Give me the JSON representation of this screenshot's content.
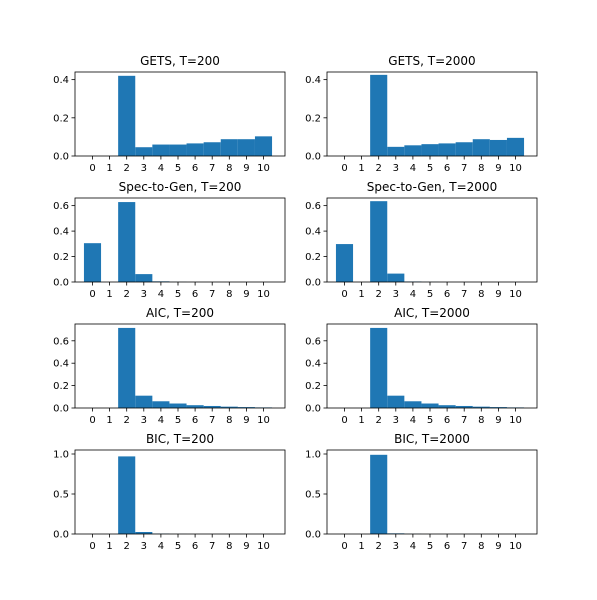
{
  "bar_color": "#1f77b4",
  "chart_data": [
    {
      "type": "bar",
      "title": "GETS, T=200",
      "categories": [
        "0",
        "1",
        "2",
        "3",
        "4",
        "5",
        "6",
        "7",
        "8",
        "9",
        "10"
      ],
      "values": [
        0,
        0,
        0.42,
        0.046,
        0.06,
        0.06,
        0.066,
        0.072,
        0.088,
        0.088,
        0.103
      ],
      "ylim": [
        0,
        0.44
      ],
      "yticks": [
        0.0,
        0.2,
        0.4
      ],
      "ytick_labels": [
        "0.0",
        "0.2",
        "0.4"
      ],
      "grid": false
    },
    {
      "type": "bar",
      "title": "GETS, T=2000",
      "categories": [
        "0",
        "1",
        "2",
        "3",
        "4",
        "5",
        "6",
        "7",
        "8",
        "9",
        "10"
      ],
      "values": [
        0,
        0,
        0.425,
        0.048,
        0.056,
        0.062,
        0.066,
        0.072,
        0.088,
        0.084,
        0.095
      ],
      "ylim": [
        0,
        0.44
      ],
      "yticks": [
        0.0,
        0.2,
        0.4
      ],
      "ytick_labels": [
        "0.0",
        "0.2",
        "0.4"
      ],
      "grid": false
    },
    {
      "type": "bar",
      "title": "Spec-to-Gen, T=200",
      "categories": [
        "0",
        "1",
        "2",
        "3",
        "4",
        "5",
        "6",
        "7",
        "8",
        "9",
        "10"
      ],
      "values": [
        0.305,
        0,
        0.628,
        0.062,
        0.005,
        0.001,
        0,
        0,
        0,
        0,
        0
      ],
      "ylim": [
        0,
        0.66
      ],
      "yticks": [
        0.0,
        0.2,
        0.4,
        0.6
      ],
      "ytick_labels": [
        "0.0",
        "0.2",
        "0.4",
        "0.6"
      ],
      "grid": false
    },
    {
      "type": "bar",
      "title": "Spec-to-Gen, T=2000",
      "categories": [
        "0",
        "1",
        "2",
        "3",
        "4",
        "5",
        "6",
        "7",
        "8",
        "9",
        "10"
      ],
      "values": [
        0.298,
        0,
        0.635,
        0.066,
        0.004,
        0.001,
        0,
        0,
        0,
        0,
        0
      ],
      "ylim": [
        0,
        0.66
      ],
      "yticks": [
        0.0,
        0.2,
        0.4,
        0.6
      ],
      "ytick_labels": [
        "0.0",
        "0.2",
        "0.4",
        "0.6"
      ],
      "grid": false
    },
    {
      "type": "bar",
      "title": "AIC, T=200",
      "categories": [
        "0",
        "1",
        "2",
        "3",
        "4",
        "5",
        "6",
        "7",
        "8",
        "9",
        "10"
      ],
      "values": [
        0,
        0,
        0.715,
        0.11,
        0.06,
        0.04,
        0.025,
        0.018,
        0.012,
        0.008,
        0.005
      ],
      "ylim": [
        0,
        0.75
      ],
      "yticks": [
        0.0,
        0.2,
        0.4,
        0.6
      ],
      "ytick_labels": [
        "0.0",
        "0.2",
        "0.4",
        "0.6"
      ],
      "grid": false
    },
    {
      "type": "bar",
      "title": "AIC, T=2000",
      "categories": [
        "0",
        "1",
        "2",
        "3",
        "4",
        "5",
        "6",
        "7",
        "8",
        "9",
        "10"
      ],
      "values": [
        0,
        0,
        0.715,
        0.11,
        0.06,
        0.04,
        0.025,
        0.018,
        0.012,
        0.008,
        0.005
      ],
      "ylim": [
        0,
        0.75
      ],
      "yticks": [
        0.0,
        0.2,
        0.4,
        0.6
      ],
      "ytick_labels": [
        "0.0",
        "0.2",
        "0.4",
        "0.6"
      ],
      "grid": false
    },
    {
      "type": "bar",
      "title": "BIC, T=200",
      "categories": [
        "0",
        "1",
        "2",
        "3",
        "4",
        "5",
        "6",
        "7",
        "8",
        "9",
        "10"
      ],
      "values": [
        0,
        0,
        0.97,
        0.025,
        0.004,
        0.001,
        0,
        0,
        0,
        0,
        0
      ],
      "ylim": [
        0,
        1.05
      ],
      "yticks": [
        0.0,
        0.5,
        1.0
      ],
      "ytick_labels": [
        "0.0",
        "0.5",
        "1.0"
      ],
      "grid": false
    },
    {
      "type": "bar",
      "title": "BIC, T=2000",
      "categories": [
        "0",
        "1",
        "2",
        "3",
        "4",
        "5",
        "6",
        "7",
        "8",
        "9",
        "10"
      ],
      "values": [
        0,
        0,
        0.99,
        0.008,
        0.002,
        0,
        0,
        0,
        0,
        0,
        0
      ],
      "ylim": [
        0,
        1.05
      ],
      "yticks": [
        0.0,
        0.5,
        1.0
      ],
      "ytick_labels": [
        "0.0",
        "0.5",
        "1.0"
      ],
      "grid": false
    }
  ]
}
